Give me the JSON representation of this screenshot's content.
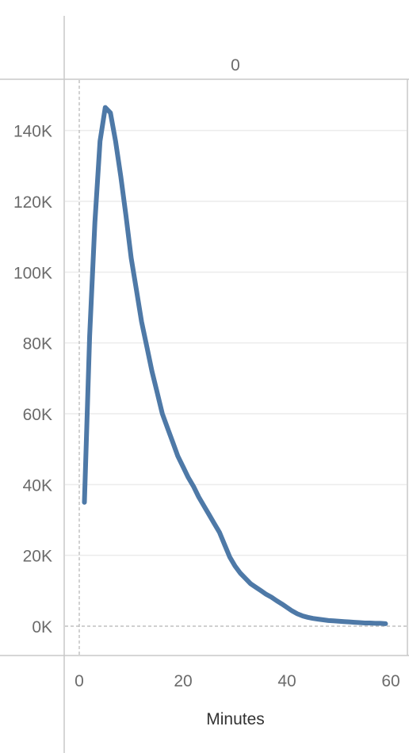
{
  "chart_data": {
    "type": "line",
    "column_header": "0",
    "xlabel": "Minutes",
    "ylabel": "",
    "xlim": [
      0,
      60
    ],
    "ylim": [
      0,
      150000
    ],
    "x_ticks": [
      0,
      20,
      40,
      60
    ],
    "x_tick_labels": [
      "0",
      "20",
      "40",
      "60"
    ],
    "y_ticks": [
      0,
      20000,
      40000,
      60000,
      80000,
      100000,
      120000,
      140000
    ],
    "y_tick_labels": [
      "0K",
      "20K",
      "40K",
      "60K",
      "80K",
      "100K",
      "120K",
      "140K"
    ],
    "grid": true,
    "series": [
      {
        "color": "#4e79a7",
        "x": [
          1,
          2,
          3,
          4,
          5,
          6,
          7,
          8,
          9,
          10,
          11,
          12,
          13,
          14,
          15,
          16,
          17,
          18,
          19,
          20,
          21,
          22,
          23,
          24,
          25,
          26,
          27,
          28,
          29,
          30,
          31,
          32,
          33,
          34,
          35,
          36,
          37,
          38,
          39,
          40,
          41,
          42,
          43,
          44,
          45,
          46,
          47,
          48,
          49,
          50,
          51,
          52,
          53,
          54,
          55,
          56,
          57,
          58,
          59
        ],
        "values": [
          35000,
          82000,
          114000,
          137000,
          146500,
          145000,
          137000,
          127000,
          116000,
          104000,
          95000,
          86000,
          79000,
          72000,
          66000,
          60000,
          56000,
          52000,
          48000,
          45000,
          42000,
          39500,
          36500,
          34000,
          31500,
          29000,
          26500,
          23000,
          19500,
          17000,
          15000,
          13500,
          12000,
          11000,
          10000,
          9000,
          8200,
          7200,
          6300,
          5300,
          4300,
          3500,
          2900,
          2500,
          2200,
          2000,
          1800,
          1600,
          1500,
          1400,
          1300,
          1200,
          1100,
          1000,
          900,
          900,
          800,
          800,
          700
        ]
      }
    ]
  }
}
